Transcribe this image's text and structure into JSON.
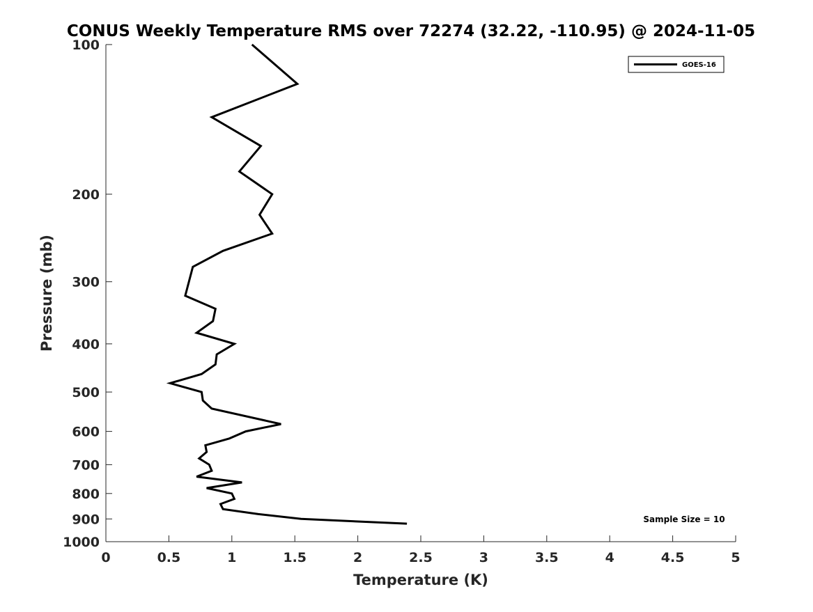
{
  "chart_data": {
    "type": "line",
    "title": "CONUS Weekly Temperature RMS over 72274 (32.22, -110.95) @ 2024-11-05",
    "xlabel": "Temperature (K)",
    "ylabel": "Pressure (mb)",
    "xlim": [
      0,
      5
    ],
    "ylim": [
      100,
      1000
    ],
    "yscale": "log",
    "yreversed": true,
    "xticks": [
      "0",
      "0.5",
      "1",
      "1.5",
      "2",
      "2.5",
      "3",
      "3.5",
      "4",
      "4.5",
      "5"
    ],
    "xtick_values": [
      0,
      0.5,
      1,
      1.5,
      2,
      2.5,
      3,
      3.5,
      4,
      4.5,
      5
    ],
    "yticks": [
      "100",
      "200",
      "300",
      "400",
      "500",
      "600",
      "700",
      "800",
      "900",
      "1000"
    ],
    "ytick_values": [
      100,
      200,
      300,
      400,
      500,
      600,
      700,
      800,
      900,
      1000
    ],
    "grid": false,
    "legend_position": "top-right",
    "annotation": "Sample Size = 10",
    "series": [
      {
        "name": "GOES-16",
        "color": "#000000",
        "x": [
          1.16,
          1.52,
          0.84,
          1.23,
          1.06,
          1.32,
          1.22,
          1.32,
          0.93,
          0.69,
          0.63,
          0.87,
          0.85,
          0.72,
          1.02,
          0.88,
          0.87,
          0.76,
          0.51,
          0.76,
          0.77,
          0.84,
          1.39,
          1.11,
          0.98,
          0.79,
          0.8,
          0.74,
          0.82,
          0.84,
          0.72,
          1.08,
          0.8,
          1.0,
          1.02,
          0.91,
          0.93,
          1.21,
          1.55,
          2.39
        ],
        "y": [
          100,
          120,
          140,
          160,
          180,
          200,
          220,
          240,
          260,
          280,
          320,
          340,
          360,
          380,
          400,
          420,
          440,
          460,
          480,
          500,
          520,
          540,
          580,
          600,
          620,
          640,
          660,
          680,
          700,
          720,
          740,
          760,
          780,
          800,
          820,
          840,
          860,
          880,
          900,
          920
        ]
      }
    ]
  }
}
